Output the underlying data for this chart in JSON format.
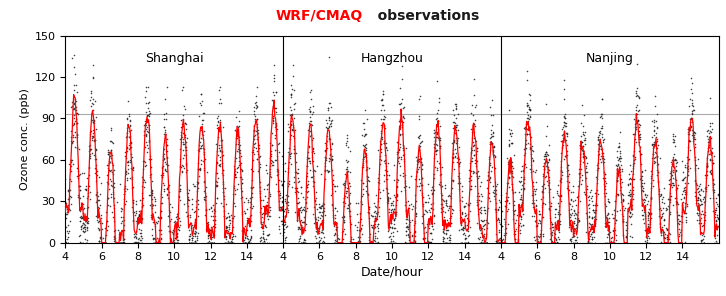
{
  "title_wrf": "WRF/CMAQ",
  "title_obs": "   observations",
  "title_color_wrf": "#FF0000",
  "title_color_obs": "#1a1a1a",
  "ylabel": "Ozone conc. (ppb)",
  "xlabel": "Date/hour",
  "ylim": [
    0,
    150
  ],
  "yticks": [
    0,
    30,
    60,
    90,
    120,
    150
  ],
  "hline_y": 93,
  "hline_color": "#AAAAAA",
  "section_labels": [
    "Shanghai",
    "Hangzhou",
    "Nanjing"
  ],
  "model_color": "#FF0000",
  "obs_color": "#222222",
  "obs_markersize": 2.5,
  "model_linewidth": 0.9,
  "background_color": "#FFFFFF",
  "figsize": [
    7.26,
    2.96
  ],
  "dpi": 100,
  "n_days": 12,
  "shown_dates": [
    4,
    6,
    8,
    10,
    12,
    14
  ],
  "title_fontsize": 10,
  "label_fontsize": 8,
  "city_fontsize": 9
}
